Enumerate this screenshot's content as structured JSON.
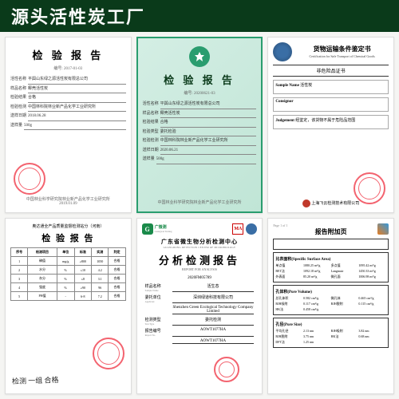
{
  "header": {
    "title": "源头活性炭工厂"
  },
  "doc1": {
    "title": "检 验 报 告",
    "number": "编号: 2017-01-03",
    "fields": [
      {
        "label": "活性名称",
        "value": "平舆山东绿之源活性炭有限总公司"
      },
      {
        "label": "样品名称",
        "value": "椰壳活性炭"
      },
      {
        "label": "检验结果",
        "value": "合格"
      },
      {
        "label": "检验检测",
        "value": "中国林科院林业新产品化学工业研究所"
      },
      {
        "label": "送样日期",
        "value": "2018.06.28"
      },
      {
        "label": "送样量",
        "value": "500g"
      }
    ],
    "footer": "中国林业科学研究院林业新产品化学工业研究所",
    "footer_date": "2019.01.09"
  },
  "doc2": {
    "title": "检 验 报 告",
    "number": "编号: 20200621-03",
    "fields": [
      {
        "label": "活性名称",
        "value": "平舆山东绿之源活性炭有限总公司"
      },
      {
        "label": "样品名称",
        "value": "椰壳活性炭"
      },
      {
        "label": "检验结果",
        "value": "合格"
      },
      {
        "label": "检验类型",
        "value": "委托检验"
      },
      {
        "label": "检验检测",
        "value": "中国林科院林业新产品化学工业研究所"
      },
      {
        "label": "送样日期",
        "value": "2020.06.21"
      },
      {
        "label": "送样量",
        "value": "500g"
      }
    ],
    "footer": "中国林业科学研究院林业新产品化学工业研究所"
  },
  "doc3": {
    "title": "货物运输条件鉴定书",
    "subtitle": "Certification for Safe Transport of Chemical Goods",
    "section": "非危险品证书",
    "fields": [
      {
        "label": "Sample Name",
        "value": "活性炭"
      },
      {
        "label": "Consignor",
        "value": ""
      },
      {
        "label": "Judgement",
        "value": "经鉴定，该货物不属于危险品范围"
      }
    ],
    "org": "上海飞云检测技术有限公司"
  },
  "doc4": {
    "header": "奥达通全产品质量监督检测站分（河南）",
    "title": "检 验 报 告",
    "columns": [
      "序号",
      "检测项目",
      "单位",
      "标准",
      "实测",
      "判定"
    ],
    "rows": [
      [
        "1",
        "碘值",
        "mg/g",
        "≥800",
        "1050",
        "合格"
      ],
      [
        "2",
        "水分",
        "%",
        "≤10",
        "4.2",
        "合格"
      ],
      [
        "3",
        "灰分",
        "%",
        "≤8",
        "3.1",
        "合格"
      ],
      [
        "4",
        "强度",
        "%",
        "≥90",
        "96",
        "合格"
      ],
      [
        "5",
        "PH值",
        "-",
        "6-8",
        "7.2",
        "合格"
      ]
    ],
    "handwriting": "检测  一组   合格"
  },
  "doc5": {
    "green_label": "广微测",
    "green_label_en": "Guangwei Testing",
    "org": "广东省微生物分析检测中心",
    "org_en": "GUANGDONG DETECTION CENTER OF MICROBIOLOGY",
    "title": "分析检测报告",
    "title_en": "REPORT FOR ANALYSIS",
    "report_no": "2020FM05789",
    "fields": [
      {
        "label_cn": "样品名称",
        "label_en": "Sample Name",
        "value": "活生态"
      },
      {
        "label_cn": "委托单位",
        "label_en": "Applicant",
        "value": "深圳绿道科技有限公司"
      },
      {
        "label_cn": "",
        "label_en": "",
        "value": "Shenzhen Green Ecological Technology Company Limited"
      },
      {
        "label_cn": "检测类型",
        "label_en": "Test Type",
        "value": "委托检测"
      },
      {
        "label_cn": "报告编号",
        "label_en": "Report No.",
        "value": "AOWT1077HA"
      },
      {
        "label_cn": "",
        "label_en": "",
        "value": "AOWT1077HA"
      }
    ]
  },
  "doc6": {
    "title": "报告附加页",
    "page": "Page 1 of 1",
    "sections": [
      {
        "name": "比表面积(Specific Surface Area)",
        "rows": [
          [
            "单点值",
            "1080.25 m²/g",
            "多点值",
            "1095.42 m²/g"
          ],
          [
            "BET法",
            "1092.18 m²/g",
            "Langmuir",
            "1450.33 m²/g"
          ],
          [
            "外表面",
            "85.20 m²/g",
            "微孔面",
            "1006.98 m²/g"
          ]
        ]
      },
      {
        "name": "孔体积(Pore Volume)",
        "rows": [
          [
            "总孔体积",
            "0.582 cm³/g",
            "微孔体",
            "0.465 cm³/g"
          ],
          [
            "BJH吸附",
            "0.117 cm³/g",
            "BJH脱附",
            "0.115 cm³/g"
          ],
          [
            "HK法",
            "0.458 cm³/g",
            "",
            ""
          ]
        ]
      },
      {
        "name": "孔径(Pore Size)",
        "rows": [
          [
            "平均孔径",
            "2.13 nm",
            "BJH吸附",
            "3.82 nm"
          ],
          [
            "BJH脱附",
            "3.75 nm",
            "HK法",
            "0.68 nm"
          ],
          [
            "DFT法",
            "1.25 nm",
            "",
            ""
          ]
        ]
      }
    ]
  }
}
